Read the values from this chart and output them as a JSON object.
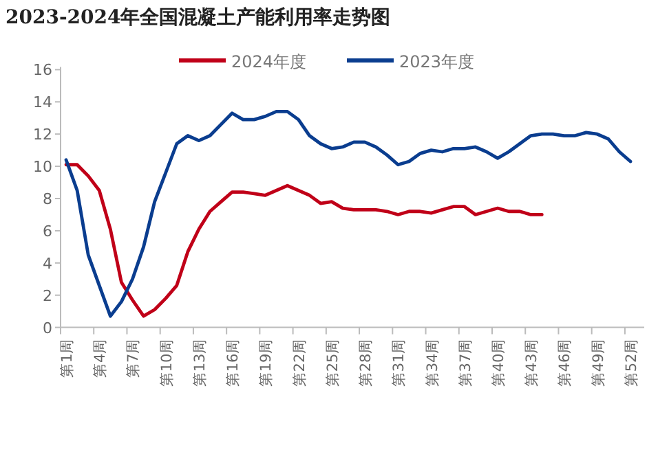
{
  "chart_data": {
    "type": "line",
    "title": "2023-2024年全国混凝土产能利用率走势图",
    "categories": [
      "第1周",
      null,
      null,
      "第4周",
      null,
      null,
      "第7周",
      null,
      null,
      "第10周",
      null,
      null,
      "第13周",
      null,
      null,
      "第16周",
      null,
      null,
      "第19周",
      null,
      null,
      "第22周",
      null,
      null,
      "第25周",
      null,
      null,
      "第28周",
      null,
      null,
      "第31周",
      null,
      null,
      "第34周",
      null,
      null,
      "第37周",
      null,
      null,
      "第40周",
      null,
      null,
      "第43周",
      null,
      null,
      "第46周",
      null,
      null,
      "第49周",
      null,
      null,
      "第52周"
    ],
    "series": [
      {
        "name": "2024年度",
        "color": "#c00018",
        "values": [
          10.1,
          10.1,
          9.4,
          8.5,
          6.1,
          2.8,
          1.7,
          0.7,
          1.1,
          1.8,
          2.6,
          4.7,
          6.1,
          7.2,
          7.8,
          8.4,
          8.4,
          8.3,
          8.2,
          8.5,
          8.8,
          8.5,
          8.2,
          7.7,
          7.8,
          7.4,
          7.3,
          7.3,
          7.3,
          7.2,
          7.0,
          7.2,
          7.2,
          7.1,
          7.3,
          7.5,
          7.5,
          7.0,
          7.2,
          7.4,
          7.2,
          7.2,
          7.0,
          7.0,
          null,
          null,
          null,
          null,
          null,
          null,
          null,
          null
        ]
      },
      {
        "name": "2023年度",
        "color": "#0a3d8f",
        "values": [
          10.4,
          8.5,
          4.5,
          2.6,
          0.7,
          1.6,
          3.0,
          5.0,
          7.8,
          9.6,
          11.4,
          11.9,
          11.6,
          11.9,
          12.6,
          13.3,
          12.9,
          12.9,
          13.1,
          13.4,
          13.4,
          12.9,
          11.9,
          11.4,
          11.1,
          11.2,
          11.5,
          11.5,
          11.2,
          10.7,
          10.1,
          10.3,
          10.8,
          11.0,
          10.9,
          11.1,
          11.1,
          11.2,
          10.9,
          10.5,
          10.9,
          11.4,
          11.9,
          12.0,
          12.0,
          11.9,
          11.9,
          12.1,
          12.0,
          11.7,
          10.9,
          10.3
        ]
      }
    ],
    "ylim": [
      0,
      16
    ],
    "yticks": [
      0,
      2,
      4,
      6,
      8,
      10,
      12,
      14,
      16
    ],
    "grid": false,
    "legend": "top",
    "marker": "none",
    "line_style": "solid"
  }
}
